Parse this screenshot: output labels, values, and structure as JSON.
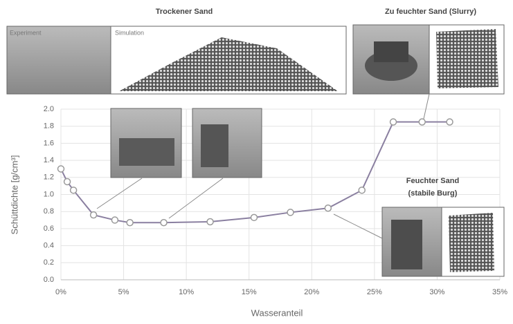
{
  "chart_data": {
    "type": "line",
    "xlabel": "Wasseranteil",
    "ylabel": "Schüttdichte [g/cm³]",
    "annotations": [
      "Trockener Sand",
      "Zu feuchter Sand (Slurry)",
      "Feuchter Sand",
      "(stabile Burg)",
      "Experiment",
      "Simulation"
    ],
    "x": [
      0,
      0.5,
      1.0,
      2.6,
      4.3,
      5.5,
      8.2,
      11.9,
      15.4,
      18.3,
      21.3,
      24.0,
      26.5,
      28.8,
      31.0
    ],
    "series": [
      {
        "name": "Schüttdichte",
        "color": "#8a7fa0",
        "values": [
          1.3,
          1.15,
          1.05,
          0.76,
          0.7,
          0.67,
          0.67,
          0.68,
          0.73,
          0.79,
          0.84,
          1.05,
          1.85,
          1.85,
          1.85
        ]
      }
    ],
    "xlim": [
      0,
      35
    ],
    "xticks": [
      {
        "value": 0,
        "label": "0%"
      },
      {
        "value": 5,
        "label": "5%"
      },
      {
        "value": 10,
        "label": "10%"
      },
      {
        "value": 15,
        "label": "15%"
      },
      {
        "value": 20,
        "label": "20%"
      },
      {
        "value": 25,
        "label": "25%"
      },
      {
        "value": 30,
        "label": "30%"
      },
      {
        "value": 35,
        "label": "35%"
      }
    ],
    "ylim": [
      0,
      2.0
    ],
    "yticks": [
      {
        "value": 0,
        "label": "0.0"
      },
      0.2,
      0.4,
      0.6,
      0.8,
      {
        "value": 1.0,
        "label": "1.0"
      },
      1.2,
      1.4,
      1.6,
      1.8,
      {
        "value": 2.0,
        "label": "2.0"
      }
    ],
    "grid": true
  }
}
